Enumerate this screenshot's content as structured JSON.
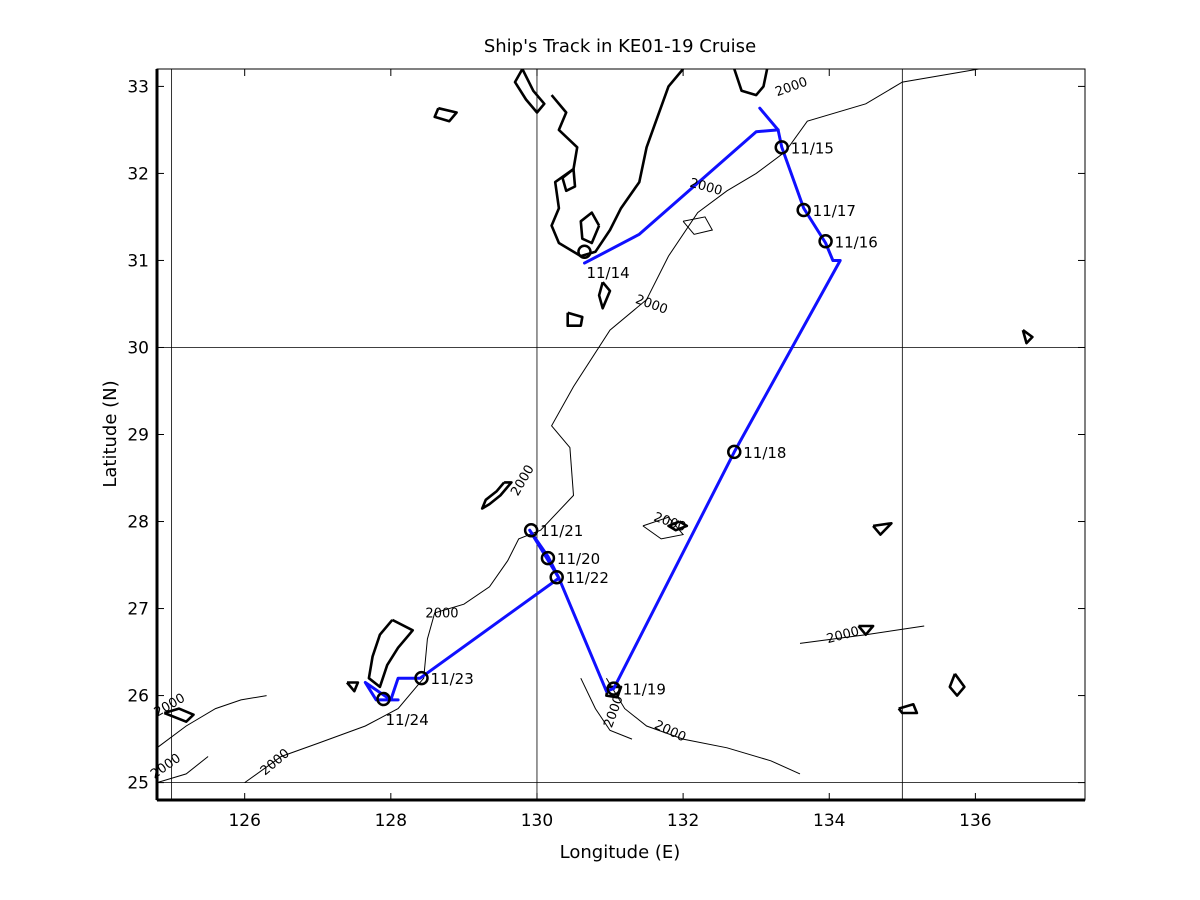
{
  "chart_data": {
    "type": "line",
    "title": "Ship's Track in KE01-19 Cruise",
    "xlabel": "Longitude (E)",
    "ylabel": "Latitude (N)",
    "xlim": [
      124.8,
      137.5
    ],
    "ylim": [
      24.8,
      33.2
    ],
    "xticks": [
      126,
      128,
      130,
      132,
      134,
      136
    ],
    "yticks": [
      25,
      26,
      27,
      28,
      29,
      30,
      31,
      32,
      33
    ],
    "grid_x": [
      125,
      130,
      135
    ],
    "grid_y": [
      25,
      30
    ],
    "track_color": "#1010ff",
    "land_color": "#000000",
    "track": [
      [
        130.65,
        30.97
      ],
      [
        131.4,
        31.3
      ],
      [
        133.0,
        32.48
      ],
      [
        133.3,
        32.5
      ],
      [
        133.35,
        32.3
      ],
      [
        133.65,
        31.6
      ],
      [
        133.95,
        31.2
      ],
      [
        134.05,
        31.0
      ],
      [
        134.15,
        31.0
      ],
      [
        132.7,
        28.8
      ],
      [
        131.05,
        26.08
      ],
      [
        130.95,
        26.05
      ],
      [
        130.3,
        27.35
      ],
      [
        130.15,
        27.6
      ],
      [
        129.9,
        27.9
      ],
      [
        130.3,
        27.35
      ],
      [
        128.4,
        26.2
      ],
      [
        128.1,
        26.2
      ],
      [
        128.0,
        25.95
      ],
      [
        127.65,
        26.15
      ],
      [
        127.8,
        25.95
      ],
      [
        128.1,
        25.95
      ]
    ],
    "track_spur": [
      [
        133.05,
        32.75
      ],
      [
        133.3,
        32.5
      ]
    ],
    "stations": [
      {
        "label": "11/14",
        "lon": 130.65,
        "lat": 31.1,
        "pos": "below"
      },
      {
        "label": "11/15",
        "lon": 133.35,
        "lat": 32.3,
        "pos": "right"
      },
      {
        "label": "11/16",
        "lon": 133.95,
        "lat": 31.22,
        "pos": "right"
      },
      {
        "label": "11/17",
        "lon": 133.65,
        "lat": 31.58,
        "pos": "right"
      },
      {
        "label": "11/18",
        "lon": 132.7,
        "lat": 28.8,
        "pos": "right"
      },
      {
        "label": "11/19",
        "lon": 131.05,
        "lat": 26.08,
        "pos": "right"
      },
      {
        "label": "11/20",
        "lon": 130.15,
        "lat": 27.58,
        "pos": "right"
      },
      {
        "label": "11/21",
        "lon": 129.92,
        "lat": 27.9,
        "pos": "right"
      },
      {
        "label": "11/22",
        "lon": 130.27,
        "lat": 27.36,
        "pos": "right"
      },
      {
        "label": "11/23",
        "lon": 128.42,
        "lat": 26.2,
        "pos": "right"
      },
      {
        "label": "11/24",
        "lon": 127.9,
        "lat": 25.96,
        "pos": "below"
      }
    ],
    "contour_labels": [
      {
        "text": "2000",
        "lon": 133.5,
        "lat": 32.95,
        "angle": -20
      },
      {
        "text": "2000",
        "lon": 132.3,
        "lat": 31.8,
        "angle": 15
      },
      {
        "text": "2000",
        "lon": 131.55,
        "lat": 30.45,
        "angle": 20
      },
      {
        "text": "2000",
        "lon": 129.85,
        "lat": 28.45,
        "angle": -60
      },
      {
        "text": "2000",
        "lon": 131.8,
        "lat": 27.95,
        "angle": 20
      },
      {
        "text": "2000",
        "lon": 128.7,
        "lat": 26.9,
        "angle": 0
      },
      {
        "text": "2000",
        "lon": 131.8,
        "lat": 25.55,
        "angle": 25
      },
      {
        "text": "2000",
        "lon": 131.1,
        "lat": 25.8,
        "angle": -70
      },
      {
        "text": "2000",
        "lon": 134.2,
        "lat": 26.65,
        "angle": -15
      },
      {
        "text": "2000",
        "lon": 126.45,
        "lat": 25.2,
        "angle": -40
      },
      {
        "text": "2000",
        "lon": 125.0,
        "lat": 25.85,
        "angle": -30
      },
      {
        "text": "2000",
        "lon": 124.95,
        "lat": 25.15,
        "angle": -35
      }
    ],
    "coastlines": [
      [
        [
          130.2,
          32.9
        ],
        [
          130.4,
          32.7
        ],
        [
          130.3,
          32.5
        ],
        [
          130.55,
          32.3
        ],
        [
          130.5,
          32.05
        ],
        [
          130.25,
          31.9
        ],
        [
          130.3,
          31.6
        ],
        [
          130.2,
          31.4
        ],
        [
          130.3,
          31.2
        ],
        [
          130.6,
          31.05
        ],
        [
          130.8,
          31.1
        ],
        [
          131.0,
          31.35
        ],
        [
          131.15,
          31.6
        ],
        [
          131.4,
          31.9
        ],
        [
          131.5,
          32.3
        ],
        [
          131.65,
          32.65
        ],
        [
          131.8,
          33.0
        ],
        [
          132.0,
          33.2
        ]
      ],
      [
        [
          130.85,
          31.4
        ],
        [
          130.75,
          31.2
        ],
        [
          130.62,
          31.25
        ],
        [
          130.6,
          31.45
        ],
        [
          130.75,
          31.55
        ],
        [
          130.85,
          31.4
        ]
      ],
      [
        [
          130.5,
          32.05
        ],
        [
          130.35,
          31.95
        ],
        [
          130.4,
          31.8
        ],
        [
          130.52,
          31.85
        ],
        [
          130.5,
          32.05
        ]
      ],
      [
        [
          129.8,
          33.2
        ],
        [
          129.95,
          32.95
        ],
        [
          130.1,
          32.8
        ],
        [
          130.0,
          32.7
        ],
        [
          129.85,
          32.85
        ],
        [
          129.7,
          33.05
        ],
        [
          129.8,
          33.2
        ]
      ],
      [
        [
          128.65,
          32.75
        ],
        [
          128.9,
          32.7
        ],
        [
          128.8,
          32.6
        ],
        [
          128.6,
          32.65
        ],
        [
          128.65,
          32.75
        ]
      ],
      [
        [
          130.42,
          30.4
        ],
        [
          130.62,
          30.35
        ],
        [
          130.6,
          30.25
        ],
        [
          130.42,
          30.25
        ],
        [
          130.42,
          30.4
        ]
      ],
      [
        [
          130.9,
          30.75
        ],
        [
          131.0,
          30.65
        ],
        [
          130.9,
          30.45
        ],
        [
          130.85,
          30.6
        ],
        [
          130.9,
          30.75
        ]
      ],
      [
        [
          129.55,
          28.45
        ],
        [
          129.45,
          28.35
        ],
        [
          129.3,
          28.25
        ],
        [
          129.25,
          28.15
        ],
        [
          129.35,
          28.2
        ],
        [
          129.5,
          28.3
        ],
        [
          129.65,
          28.45
        ],
        [
          129.55,
          28.45
        ]
      ],
      [
        [
          128.02,
          26.87
        ],
        [
          127.85,
          26.7
        ],
        [
          127.75,
          26.45
        ],
        [
          127.7,
          26.2
        ],
        [
          127.85,
          26.1
        ],
        [
          127.95,
          26.35
        ],
        [
          128.1,
          26.55
        ],
        [
          128.25,
          26.7
        ],
        [
          128.3,
          26.75
        ],
        [
          128.02,
          26.87
        ]
      ],
      [
        [
          127.4,
          26.15
        ],
        [
          127.55,
          26.15
        ],
        [
          127.5,
          26.05
        ],
        [
          127.4,
          26.15
        ]
      ],
      [
        [
          130.97,
          26.1
        ],
        [
          131.15,
          26.1
        ],
        [
          131.1,
          25.98
        ],
        [
          130.95,
          26.0
        ],
        [
          130.97,
          26.1
        ]
      ],
      [
        [
          124.9,
          25.8
        ],
        [
          125.1,
          25.85
        ],
        [
          125.3,
          25.78
        ],
        [
          125.2,
          25.7
        ],
        [
          124.9,
          25.8
        ]
      ],
      [
        [
          131.95,
          28.0
        ],
        [
          132.05,
          27.95
        ],
        [
          131.9,
          27.9
        ],
        [
          131.8,
          27.95
        ],
        [
          131.95,
          28.0
        ]
      ],
      [
        [
          134.6,
          27.95
        ],
        [
          134.85,
          27.98
        ],
        [
          134.7,
          27.85
        ],
        [
          134.6,
          27.95
        ]
      ],
      [
        [
          135.72,
          26.25
        ],
        [
          135.85,
          26.1
        ],
        [
          135.75,
          26.0
        ],
        [
          135.65,
          26.1
        ],
        [
          135.72,
          26.25
        ]
      ],
      [
        [
          136.65,
          30.2
        ],
        [
          136.78,
          30.12
        ],
        [
          136.7,
          30.05
        ],
        [
          136.65,
          30.2
        ]
      ],
      [
        [
          132.7,
          33.2
        ],
        [
          132.8,
          32.95
        ],
        [
          133.0,
          32.9
        ],
        [
          133.1,
          33.0
        ],
        [
          133.15,
          33.2
        ]
      ],
      [
        [
          134.4,
          26.8
        ],
        [
          134.6,
          26.8
        ],
        [
          134.5,
          26.7
        ],
        [
          134.4,
          26.8
        ]
      ],
      [
        [
          134.95,
          25.85
        ],
        [
          135.15,
          25.9
        ],
        [
          135.2,
          25.8
        ],
        [
          135.0,
          25.8
        ],
        [
          134.95,
          25.85
        ]
      ]
    ],
    "isobaths": [
      [
        [
          137.5,
          33.4
        ],
        [
          136.4,
          33.25
        ],
        [
          135.0,
          33.05
        ],
        [
          134.5,
          32.8
        ],
        [
          133.7,
          32.6
        ],
        [
          133.4,
          32.25
        ],
        [
          133.0,
          32.0
        ],
        [
          132.6,
          31.8
        ],
        [
          132.2,
          31.55
        ],
        [
          131.8,
          31.05
        ],
        [
          131.5,
          30.55
        ],
        [
          131.0,
          30.2
        ],
        [
          130.5,
          29.55
        ],
        [
          130.2,
          29.1
        ],
        [
          130.45,
          28.85
        ],
        [
          130.5,
          28.3
        ],
        [
          130.05,
          27.9
        ],
        [
          129.75,
          27.8
        ],
        [
          129.6,
          27.55
        ],
        [
          129.35,
          27.25
        ],
        [
          129.0,
          27.05
        ],
        [
          128.6,
          26.95
        ],
        [
          128.5,
          26.65
        ],
        [
          128.45,
          26.2
        ],
        [
          128.1,
          25.85
        ],
        [
          127.65,
          25.65
        ],
        [
          127.0,
          25.45
        ],
        [
          126.5,
          25.3
        ],
        [
          126.0,
          25.0
        ]
      ],
      [
        [
          130.95,
          26.2
        ],
        [
          131.2,
          25.85
        ],
        [
          131.5,
          25.65
        ],
        [
          132.0,
          25.5
        ],
        [
          132.6,
          25.4
        ],
        [
          133.2,
          25.25
        ],
        [
          133.6,
          25.1
        ]
      ],
      [
        [
          130.6,
          26.2
        ],
        [
          130.8,
          25.85
        ],
        [
          131.0,
          25.6
        ],
        [
          131.3,
          25.5
        ]
      ],
      [
        [
          133.6,
          26.6
        ],
        [
          134.5,
          26.7
        ],
        [
          135.3,
          26.8
        ]
      ],
      [
        [
          124.8,
          25.4
        ],
        [
          125.2,
          25.65
        ],
        [
          125.6,
          25.85
        ],
        [
          125.95,
          25.95
        ],
        [
          126.3,
          26.0
        ]
      ],
      [
        [
          124.8,
          25.0
        ],
        [
          125.2,
          25.1
        ],
        [
          125.5,
          25.3
        ]
      ],
      [
        [
          131.45,
          27.95
        ],
        [
          131.8,
          28.05
        ],
        [
          132.0,
          27.85
        ],
        [
          131.7,
          27.8
        ],
        [
          131.45,
          27.95
        ]
      ],
      [
        [
          132.0,
          31.45
        ],
        [
          132.3,
          31.5
        ],
        [
          132.4,
          31.35
        ],
        [
          132.15,
          31.3
        ],
        [
          132.0,
          31.45
        ]
      ]
    ]
  }
}
